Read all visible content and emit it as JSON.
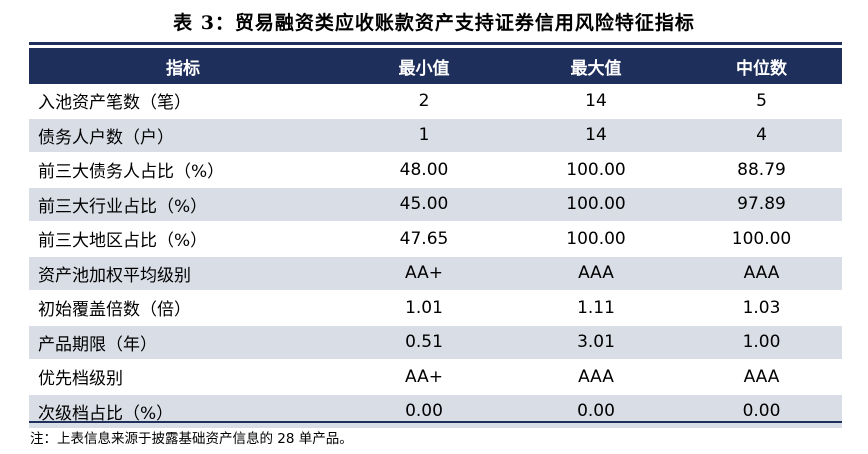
{
  "title": "表 3：贸易融资类应收账款资产支持证券信用风险特征指标",
  "table": {
    "headers": [
      "指标",
      "最小值",
      "最大值",
      "中位数"
    ],
    "rows": [
      [
        "入池资产笔数（笔）",
        "2",
        "14",
        "5"
      ],
      [
        "债务人户数（户）",
        "1",
        "14",
        "4"
      ],
      [
        "前三大债务人占比（%）",
        "48.00",
        "100.00",
        "88.79"
      ],
      [
        "前三大行业占比（%）",
        "45.00",
        "100.00",
        "97.89"
      ],
      [
        "前三大地区占比（%）",
        "47.65",
        "100.00",
        "100.00"
      ],
      [
        "资产池加权平均级别",
        "AA+",
        "AAA",
        "AAA"
      ],
      [
        "初始覆盖倍数（倍）",
        "1.01",
        "1.11",
        "1.03"
      ],
      [
        "产品期限（年）",
        "0.51",
        "3.01",
        "1.00"
      ],
      [
        "优先档级别",
        "AA+",
        "AAA",
        "AAA"
      ],
      [
        "次级档占比（%）",
        "0.00",
        "0.00",
        "0.00"
      ]
    ]
  },
  "note": "注：上表信息来源于披露基础资产信息的 28 单产品。"
}
